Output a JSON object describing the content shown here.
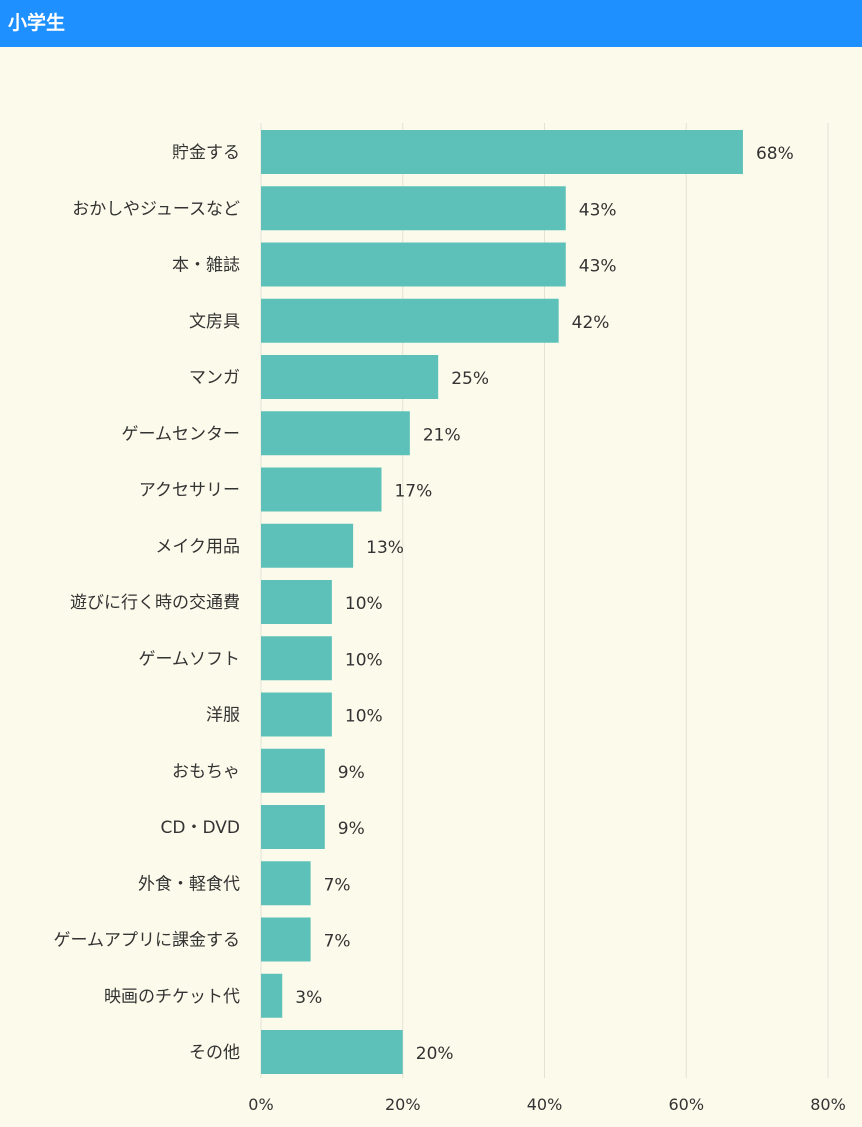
{
  "header": {
    "title": "小学生"
  },
  "chart_data": {
    "type": "bar",
    "orientation": "horizontal",
    "categories": [
      "貯金する",
      "おかしやジュースなど",
      "本・雑誌",
      "文房具",
      "マンガ",
      "ゲームセンター",
      "アクセサリー",
      "メイク用品",
      "遊びに行く時の交通費",
      "ゲームソフト",
      "洋服",
      "おもちゃ",
      "CD・DVD",
      "外食・軽食代",
      "ゲームアプリに課金する",
      "映画のチケット代",
      "その他"
    ],
    "values": [
      68,
      43,
      43,
      42,
      25,
      21,
      17,
      13,
      10,
      10,
      10,
      9,
      9,
      7,
      7,
      3,
      20
    ],
    "value_labels": [
      "68%",
      "43%",
      "43%",
      "42%",
      "25%",
      "21%",
      "17%",
      "13%",
      "10%",
      "10%",
      "10%",
      "9%",
      "9%",
      "7%",
      "7%",
      "3%",
      "20%"
    ],
    "xlim": [
      0,
      80
    ],
    "xticks": [
      0,
      20,
      40,
      60,
      80
    ],
    "xtick_labels": [
      "0%",
      "20%",
      "40%",
      "60%",
      "80%"
    ],
    "grid": true,
    "colors": {
      "bar": "#5ec1b9",
      "grid": "#e3e2d4",
      "background": "#fcfbeb",
      "header": "#1e90ff"
    }
  }
}
